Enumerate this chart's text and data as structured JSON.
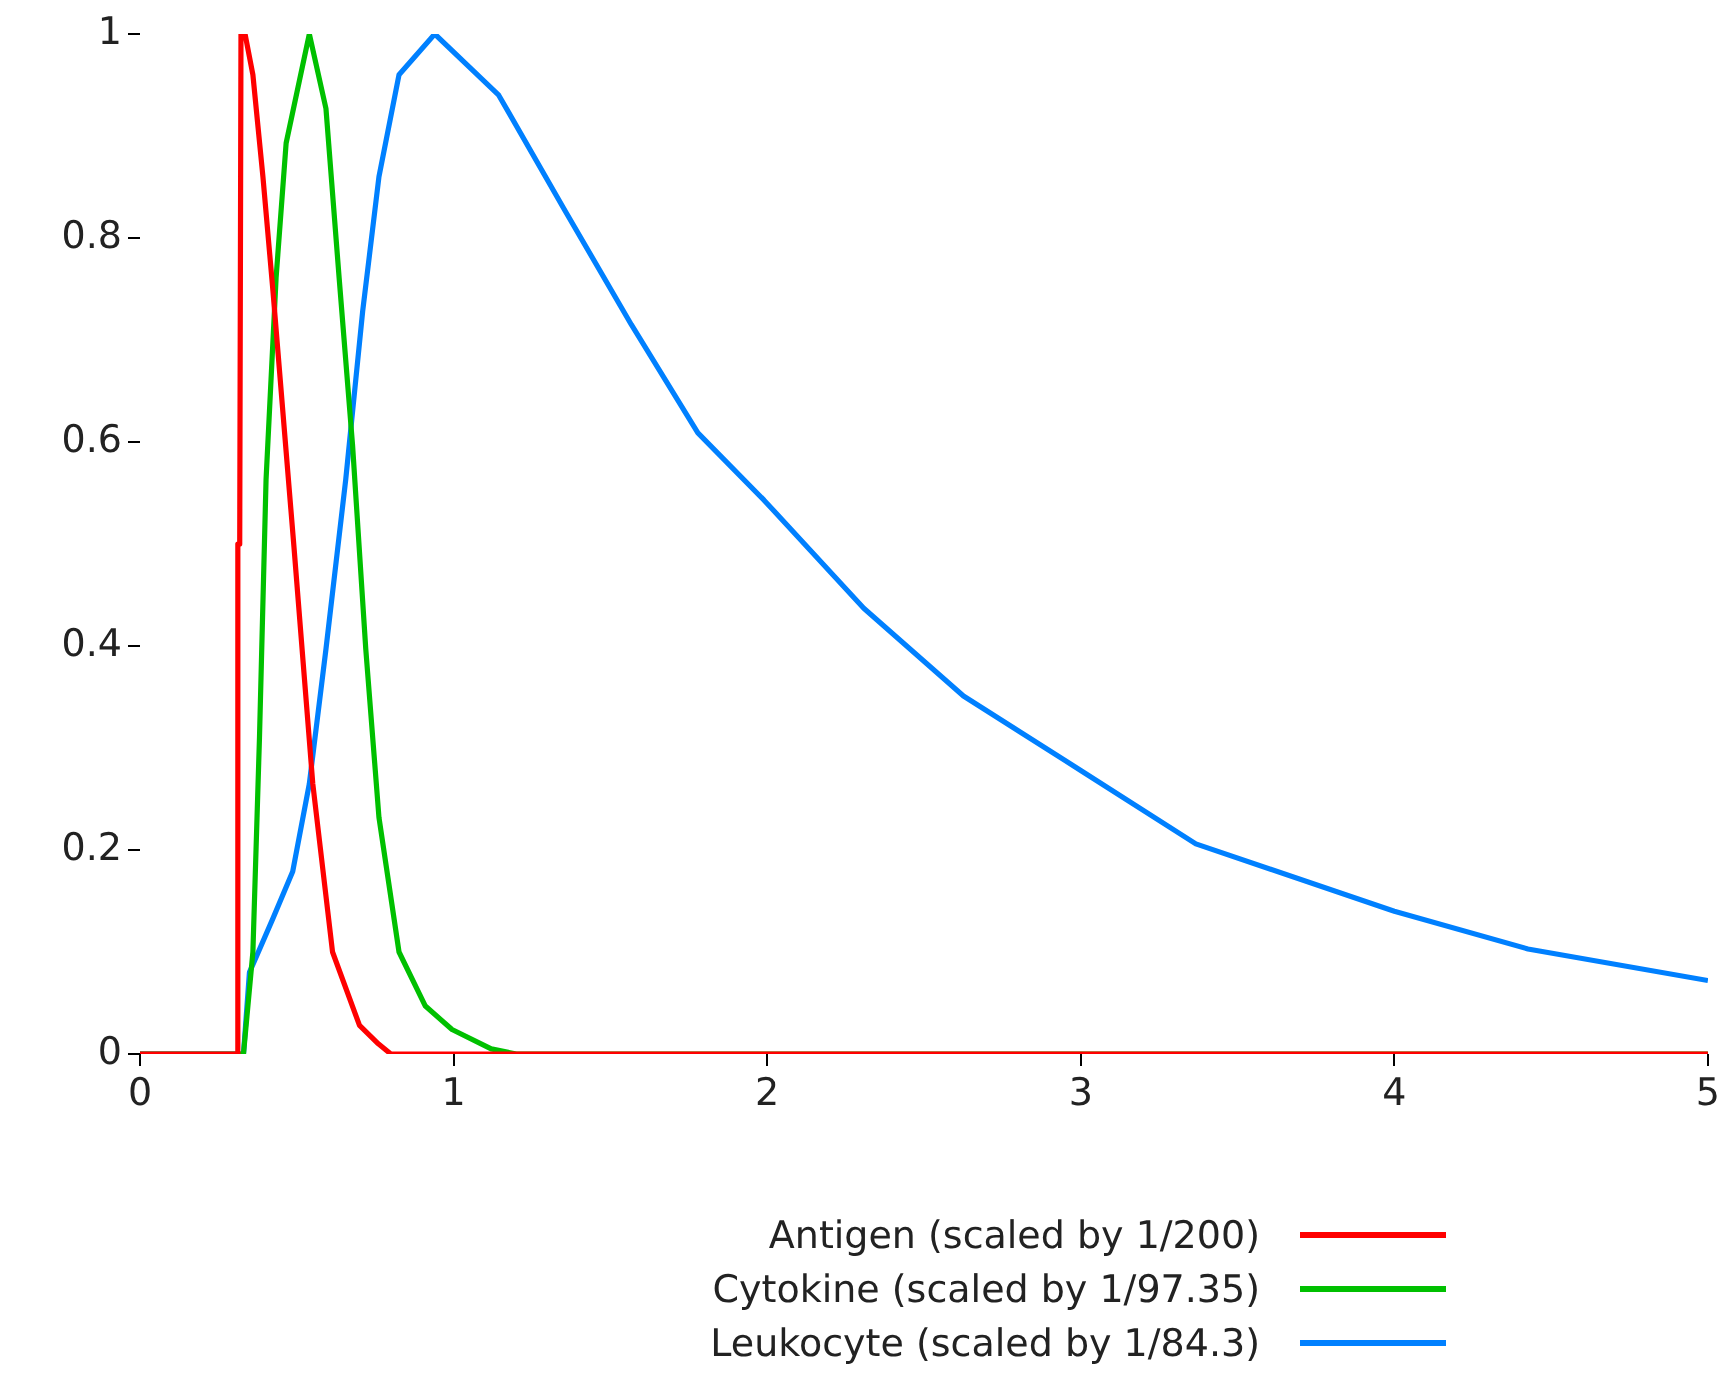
{
  "chart_data": {
    "type": "line",
    "xlim": [
      0,
      5
    ],
    "xticks": [
      0,
      1,
      2,
      3,
      4,
      5
    ],
    "ylim": [
      0,
      1
    ],
    "yticks": [
      0,
      0.2,
      0.4,
      0.6,
      0.8,
      1
    ],
    "grid": false,
    "legend": "bottom",
    "marker": "none",
    "line_style": "solid",
    "series": [
      {
        "name": "Antigen (scaled by 1/200)",
        "color": "#ff0000",
        "x": [
          0,
          0.31,
          0.312,
          0.318,
          0.322,
          0.335,
          0.36,
          0.392,
          0.424,
          0.491,
          0.551,
          0.614,
          0.7,
          0.76,
          0.8,
          5
        ],
        "values": [
          0,
          0,
          0.5,
          0.5,
          1,
          1,
          0.96,
          0.86,
          0.748,
          0.497,
          0.265,
          0.1,
          0.028,
          0.01,
          0,
          0
        ]
      },
      {
        "name": "Cytokine (scaled by 1/97.35)",
        "color": "#00c000",
        "x": [
          0,
          0.33,
          0.36,
          0.381,
          0.402,
          0.434,
          0.466,
          0.54,
          0.593,
          0.635,
          0.678,
          0.72,
          0.762,
          0.826,
          0.91,
          0.995,
          1.12,
          1.2,
          5
        ],
        "values": [
          0,
          0,
          0.1,
          0.31,
          0.563,
          0.761,
          0.893,
          1,
          0.927,
          0.761,
          0.596,
          0.397,
          0.232,
          0.1,
          0.047,
          0.024,
          0.005,
          0,
          0
        ]
      },
      {
        "name": "Leukocyte (scaled by 1/84.3)",
        "color": "#0080ff",
        "x": [
          0,
          0.33,
          0.349,
          0.424,
          0.487,
          0.54,
          0.593,
          0.656,
          0.71,
          0.762,
          0.826,
          0.94,
          1.144,
          1.355,
          1.567,
          1.779,
          1.99,
          2.308,
          2.626,
          3.0,
          3.367,
          4.0,
          4.426,
          5.0
        ],
        "values": [
          0,
          0,
          0.08,
          0.133,
          0.179,
          0.265,
          0.397,
          0.563,
          0.728,
          0.86,
          0.96,
          1,
          0.94,
          0.827,
          0.715,
          0.609,
          0.543,
          0.437,
          0.351,
          0.278,
          0.206,
          0.14,
          0.103,
          0.072
        ]
      }
    ]
  }
}
